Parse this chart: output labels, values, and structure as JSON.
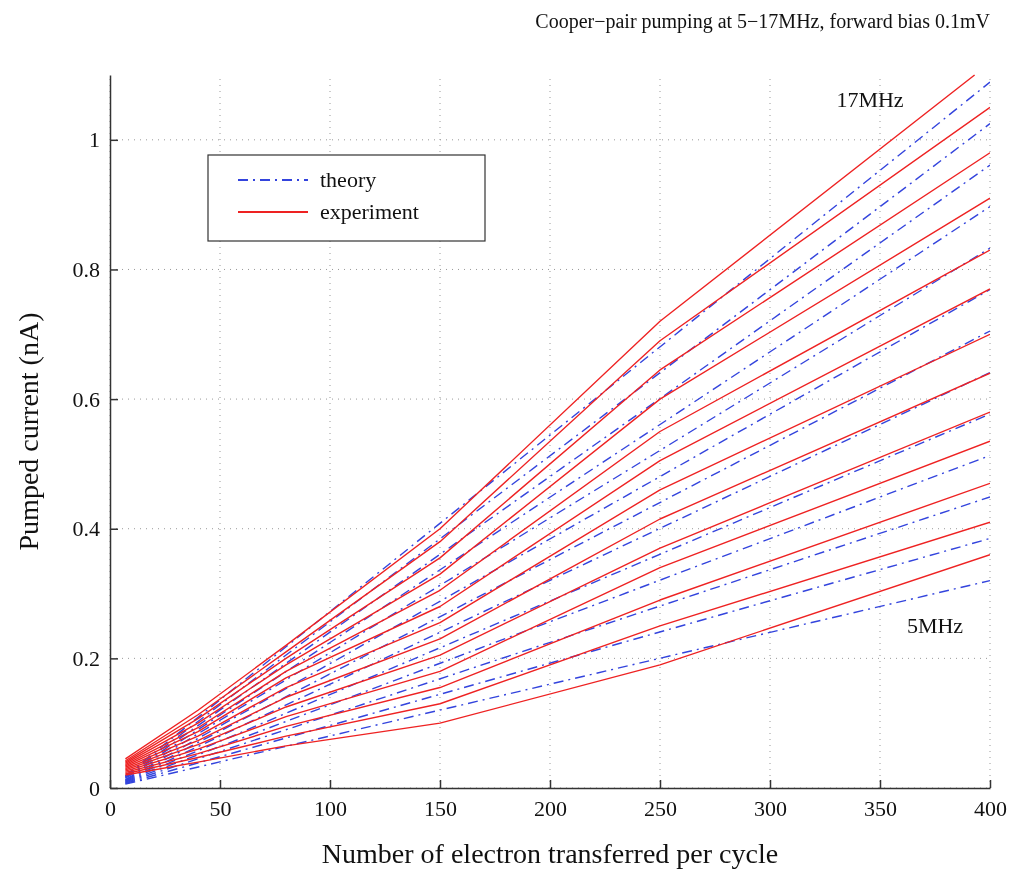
{
  "chart_data": {
    "type": "line",
    "title": "Cooper−pair pumping at 5−17MHz, forward bias 0.1mV",
    "xlabel": "Number of electron transferred per cycle",
    "ylabel": "Pumped current (nA)",
    "xlim": [
      0,
      400
    ],
    "ylim": [
      0,
      1.1
    ],
    "xticks": [
      0,
      50,
      100,
      150,
      200,
      250,
      300,
      350,
      400
    ],
    "yticks": [
      0,
      0.2,
      0.4,
      0.6,
      0.8,
      1
    ],
    "grid": true,
    "legend": "top left",
    "marker": "none",
    "annotations": [
      "17MHz",
      "5MHz"
    ],
    "series": [
      {
        "name": "theory",
        "color": "#3344dd",
        "line_style": "dashed",
        "x": [
          7,
          400
        ],
        "values": [
          0.006,
          0.32
        ]
      },
      {
        "color": "#3344dd",
        "line_style": "dashed",
        "x": [
          7,
          400
        ],
        "values": [
          0.007,
          0.385
        ]
      },
      {
        "color": "#3344dd",
        "line_style": "dashed",
        "x": [
          7,
          400
        ],
        "values": [
          0.008,
          0.449
        ]
      },
      {
        "color": "#3344dd",
        "line_style": "dashed",
        "x": [
          7,
          400
        ],
        "values": [
          0.009,
          0.513
        ]
      },
      {
        "color": "#3344dd",
        "line_style": "dashed",
        "x": [
          7,
          400
        ],
        "values": [
          0.01,
          0.577
        ]
      },
      {
        "color": "#3344dd",
        "line_style": "dashed",
        "x": [
          7,
          400
        ],
        "values": [
          0.011,
          0.641
        ]
      },
      {
        "color": "#3344dd",
        "line_style": "dashed",
        "x": [
          7,
          400
        ],
        "values": [
          0.012,
          0.705
        ]
      },
      {
        "color": "#3344dd",
        "line_style": "dashed",
        "x": [
          7,
          400
        ],
        "values": [
          0.013,
          0.769
        ]
      },
      {
        "color": "#3344dd",
        "line_style": "dashed",
        "x": [
          7,
          400
        ],
        "values": [
          0.015,
          0.833
        ]
      },
      {
        "color": "#3344dd",
        "line_style": "dashed",
        "x": [
          7,
          400
        ],
        "values": [
          0.016,
          0.897
        ]
      },
      {
        "color": "#3344dd",
        "line_style": "dashed",
        "x": [
          7,
          400
        ],
        "values": [
          0.017,
          0.961
        ]
      },
      {
        "color": "#3344dd",
        "line_style": "dashed",
        "x": [
          7,
          400
        ],
        "values": [
          0.018,
          1.025
        ]
      },
      {
        "color": "#3344dd",
        "line_style": "dashed",
        "x": [
          7,
          400
        ],
        "values": [
          0.019,
          1.089
        ]
      },
      {
        "name": "experiment",
        "color": "#ee2222",
        "line_style": "solid",
        "x": [
          7,
          40,
          80,
          150,
          250,
          400
        ],
        "values": [
          0.02,
          0.04,
          0.065,
          0.1,
          0.19,
          0.36
        ]
      },
      {
        "color": "#ee2222",
        "line_style": "solid",
        "x": [
          7,
          40,
          80,
          150,
          250,
          400
        ],
        "values": [
          0.022,
          0.047,
          0.08,
          0.13,
          0.25,
          0.41
        ]
      },
      {
        "color": "#ee2222",
        "line_style": "solid",
        "x": [
          7,
          40,
          80,
          150,
          250,
          400
        ],
        "values": [
          0.024,
          0.053,
          0.095,
          0.155,
          0.29,
          0.47
        ]
      },
      {
        "color": "#ee2222",
        "line_style": "solid",
        "x": [
          7,
          40,
          80,
          150,
          250,
          400
        ],
        "values": [
          0.026,
          0.06,
          0.11,
          0.18,
          0.34,
          0.535
        ]
      },
      {
        "color": "#ee2222",
        "line_style": "solid",
        "x": [
          7,
          40,
          80,
          150,
          250,
          400
        ],
        "values": [
          0.028,
          0.067,
          0.125,
          0.205,
          0.37,
          0.58
        ]
      },
      {
        "color": "#ee2222",
        "line_style": "solid",
        "x": [
          7,
          40,
          80,
          150,
          250,
          400
        ],
        "values": [
          0.03,
          0.073,
          0.14,
          0.23,
          0.415,
          0.64
        ]
      },
      {
        "color": "#ee2222",
        "line_style": "solid",
        "x": [
          7,
          40,
          80,
          150,
          250,
          400
        ],
        "values": [
          0.032,
          0.08,
          0.155,
          0.255,
          0.46,
          0.7
        ]
      },
      {
        "color": "#ee2222",
        "line_style": "solid",
        "x": [
          7,
          40,
          80,
          150,
          250,
          400
        ],
        "values": [
          0.034,
          0.087,
          0.17,
          0.28,
          0.505,
          0.77
        ]
      },
      {
        "color": "#ee2222",
        "line_style": "solid",
        "x": [
          7,
          40,
          80,
          150,
          250,
          400
        ],
        "values": [
          0.036,
          0.093,
          0.18,
          0.305,
          0.55,
          0.83
        ]
      },
      {
        "color": "#ee2222",
        "line_style": "solid",
        "x": [
          7,
          40,
          80,
          150,
          250,
          400
        ],
        "values": [
          0.038,
          0.1,
          0.19,
          0.33,
          0.6,
          0.91
        ]
      },
      {
        "color": "#ee2222",
        "line_style": "solid",
        "x": [
          7,
          40,
          80,
          150,
          250,
          400
        ],
        "values": [
          0.04,
          0.107,
          0.2,
          0.355,
          0.645,
          0.98
        ]
      },
      {
        "color": "#ee2222",
        "line_style": "solid",
        "x": [
          7,
          40,
          80,
          150,
          250,
          400
        ],
        "values": [
          0.042,
          0.113,
          0.21,
          0.38,
          0.69,
          1.05
        ]
      },
      {
        "color": "#ee2222",
        "line_style": "solid",
        "x": [
          7,
          40,
          80,
          150,
          250,
          393
        ],
        "values": [
          0.045,
          0.12,
          0.22,
          0.4,
          0.72,
          1.1
        ]
      }
    ]
  }
}
